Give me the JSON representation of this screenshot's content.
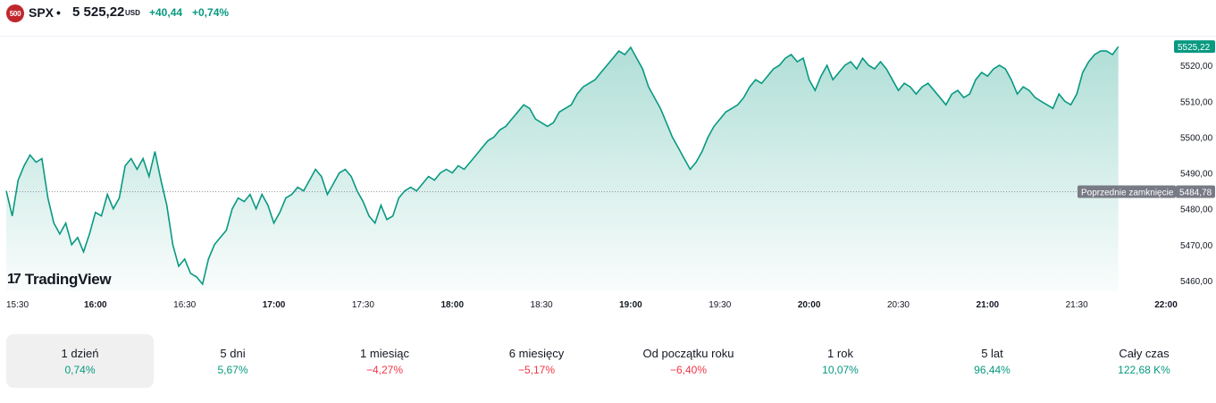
{
  "header": {
    "badge": "500",
    "symbol": "SPX",
    "separator": "•",
    "price": "5 525,22",
    "currency": "USD",
    "change": "+40,44",
    "change_percent": "+0,74%"
  },
  "colors": {
    "up": "#089981",
    "down": "#f23645",
    "badge": "#c0272d",
    "line": "#089981"
  },
  "chart_data": {
    "type": "area",
    "x_labels": [
      "15:30",
      "16:00",
      "16:30",
      "17:00",
      "17:30",
      "18:00",
      "18:30",
      "19:00",
      "19:30",
      "20:00",
      "20:30",
      "21:00",
      "21:30",
      "22:00"
    ],
    "y_ticks": [
      "5520,00",
      "5510,00",
      "5500,00",
      "5490,00",
      "5480,00",
      "5470,00",
      "5460,00"
    ],
    "y_tick_values": [
      5520,
      5510,
      5500,
      5490,
      5480,
      5470,
      5460
    ],
    "ylim": [
      5457,
      5528
    ],
    "x_domain_minutes": [
      930,
      1320
    ],
    "previous_close": 5484.78,
    "previous_close_value_label": "5484,78",
    "previous_close_label": "Poprzednie zamknięcie",
    "last_price": 5525.22,
    "last_price_label": "5525,22",
    "series": [
      {
        "values": [
          [
            930,
            5485
          ],
          [
            932,
            5478
          ],
          [
            934,
            5488
          ],
          [
            936,
            5492
          ],
          [
            938,
            5495
          ],
          [
            940,
            5493
          ],
          [
            942,
            5494
          ],
          [
            944,
            5483
          ],
          [
            946,
            5476
          ],
          [
            948,
            5473
          ],
          [
            950,
            5476
          ],
          [
            952,
            5470
          ],
          [
            954,
            5472
          ],
          [
            956,
            5468
          ],
          [
            958,
            5473
          ],
          [
            960,
            5479
          ],
          [
            962,
            5478
          ],
          [
            964,
            5484
          ],
          [
            966,
            5480
          ],
          [
            968,
            5483
          ],
          [
            970,
            5492
          ],
          [
            972,
            5494
          ],
          [
            974,
            5491
          ],
          [
            976,
            5494
          ],
          [
            978,
            5489
          ],
          [
            980,
            5496
          ],
          [
            982,
            5488
          ],
          [
            984,
            5481
          ],
          [
            986,
            5470
          ],
          [
            988,
            5464
          ],
          [
            990,
            5466
          ],
          [
            992,
            5462
          ],
          [
            994,
            5461
          ],
          [
            996,
            5459
          ],
          [
            998,
            5466
          ],
          [
            1000,
            5470
          ],
          [
            1002,
            5472
          ],
          [
            1004,
            5474
          ],
          [
            1006,
            5480
          ],
          [
            1008,
            5483
          ],
          [
            1010,
            5482
          ],
          [
            1012,
            5484
          ],
          [
            1014,
            5480
          ],
          [
            1016,
            5484
          ],
          [
            1018,
            5481
          ],
          [
            1020,
            5476
          ],
          [
            1022,
            5479
          ],
          [
            1024,
            5483
          ],
          [
            1026,
            5484
          ],
          [
            1028,
            5486
          ],
          [
            1030,
            5485
          ],
          [
            1032,
            5488
          ],
          [
            1034,
            5491
          ],
          [
            1036,
            5489
          ],
          [
            1038,
            5484
          ],
          [
            1040,
            5487
          ],
          [
            1042,
            5490
          ],
          [
            1044,
            5491
          ],
          [
            1046,
            5489
          ],
          [
            1048,
            5485
          ],
          [
            1050,
            5482
          ],
          [
            1052,
            5478
          ],
          [
            1054,
            5476
          ],
          [
            1056,
            5481
          ],
          [
            1058,
            5477
          ],
          [
            1060,
            5478
          ],
          [
            1062,
            5483
          ],
          [
            1064,
            5485
          ],
          [
            1066,
            5486
          ],
          [
            1068,
            5485
          ],
          [
            1070,
            5487
          ],
          [
            1072,
            5489
          ],
          [
            1074,
            5488
          ],
          [
            1076,
            5490
          ],
          [
            1078,
            5491
          ],
          [
            1080,
            5490
          ],
          [
            1082,
            5492
          ],
          [
            1084,
            5491
          ],
          [
            1086,
            5493
          ],
          [
            1088,
            5495
          ],
          [
            1090,
            5497
          ],
          [
            1092,
            5499
          ],
          [
            1094,
            5500
          ],
          [
            1096,
            5502
          ],
          [
            1098,
            5503
          ],
          [
            1100,
            5505
          ],
          [
            1102,
            5507
          ],
          [
            1104,
            5509
          ],
          [
            1106,
            5508
          ],
          [
            1108,
            5505
          ],
          [
            1110,
            5504
          ],
          [
            1112,
            5503
          ],
          [
            1114,
            5504
          ],
          [
            1116,
            5507
          ],
          [
            1118,
            5508
          ],
          [
            1120,
            5509
          ],
          [
            1122,
            5512
          ],
          [
            1124,
            5514
          ],
          [
            1126,
            5515
          ],
          [
            1128,
            5516
          ],
          [
            1130,
            5518
          ],
          [
            1132,
            5520
          ],
          [
            1134,
            5522
          ],
          [
            1136,
            5524
          ],
          [
            1138,
            5523
          ],
          [
            1140,
            5525
          ],
          [
            1142,
            5522
          ],
          [
            1144,
            5519
          ],
          [
            1146,
            5514
          ],
          [
            1148,
            5511
          ],
          [
            1150,
            5508
          ],
          [
            1152,
            5504
          ],
          [
            1154,
            5500
          ],
          [
            1156,
            5497
          ],
          [
            1158,
            5494
          ],
          [
            1160,
            5491
          ],
          [
            1162,
            5493
          ],
          [
            1164,
            5496
          ],
          [
            1166,
            5500
          ],
          [
            1168,
            5503
          ],
          [
            1170,
            5505
          ],
          [
            1172,
            5507
          ],
          [
            1174,
            5508
          ],
          [
            1176,
            5509
          ],
          [
            1178,
            5511
          ],
          [
            1180,
            5514
          ],
          [
            1182,
            5516
          ],
          [
            1184,
            5515
          ],
          [
            1186,
            5517
          ],
          [
            1188,
            5519
          ],
          [
            1190,
            5520
          ],
          [
            1192,
            5522
          ],
          [
            1194,
            5523
          ],
          [
            1196,
            5521
          ],
          [
            1198,
            5522
          ],
          [
            1200,
            5516
          ],
          [
            1202,
            5513
          ],
          [
            1204,
            5517
          ],
          [
            1206,
            5520
          ],
          [
            1208,
            5516
          ],
          [
            1210,
            5518
          ],
          [
            1212,
            5520
          ],
          [
            1214,
            5521
          ],
          [
            1216,
            5519
          ],
          [
            1218,
            5522
          ],
          [
            1220,
            5520
          ],
          [
            1222,
            5519
          ],
          [
            1224,
            5521
          ],
          [
            1226,
            5519
          ],
          [
            1228,
            5516
          ],
          [
            1230,
            5513
          ],
          [
            1232,
            5515
          ],
          [
            1234,
            5514
          ],
          [
            1236,
            5512
          ],
          [
            1238,
            5514
          ],
          [
            1240,
            5515
          ],
          [
            1242,
            5513
          ],
          [
            1244,
            5511
          ],
          [
            1246,
            5509
          ],
          [
            1248,
            5512
          ],
          [
            1250,
            5513
          ],
          [
            1252,
            5511
          ],
          [
            1254,
            5512
          ],
          [
            1256,
            5516
          ],
          [
            1258,
            5518
          ],
          [
            1260,
            5517
          ],
          [
            1262,
            5519
          ],
          [
            1264,
            5520
          ],
          [
            1266,
            5519
          ],
          [
            1268,
            5516
          ],
          [
            1270,
            5512
          ],
          [
            1272,
            5514
          ],
          [
            1274,
            5513
          ],
          [
            1276,
            5511
          ],
          [
            1278,
            5510
          ],
          [
            1280,
            5509
          ],
          [
            1282,
            5508
          ],
          [
            1284,
            5512
          ],
          [
            1286,
            5510
          ],
          [
            1288,
            5509
          ],
          [
            1290,
            5512
          ],
          [
            1292,
            5518
          ],
          [
            1294,
            5521
          ],
          [
            1296,
            5523
          ],
          [
            1298,
            5524
          ],
          [
            1300,
            5524
          ],
          [
            1302,
            5523
          ],
          [
            1304,
            5525.22
          ]
        ]
      }
    ]
  },
  "branding": {
    "logo_mark": "17",
    "logo_text": "TradingView"
  },
  "periods": [
    {
      "label": "1 dzień",
      "value": "0,74%",
      "trend": "pos",
      "active": true
    },
    {
      "label": "5 dni",
      "value": "5,67%",
      "trend": "pos"
    },
    {
      "label": "1 miesiąc",
      "value": "−4,27%",
      "trend": "neg"
    },
    {
      "label": "6 miesięcy",
      "value": "−5,17%",
      "trend": "neg"
    },
    {
      "label": "Od początku roku",
      "value": "−6,40%",
      "trend": "neg"
    },
    {
      "label": "1 rok",
      "value": "10,07%",
      "trend": "pos"
    },
    {
      "label": "5 lat",
      "value": "96,44%",
      "trend": "pos"
    },
    {
      "label": "Cały czas",
      "value": "122,68 K%",
      "trend": "pos"
    }
  ]
}
